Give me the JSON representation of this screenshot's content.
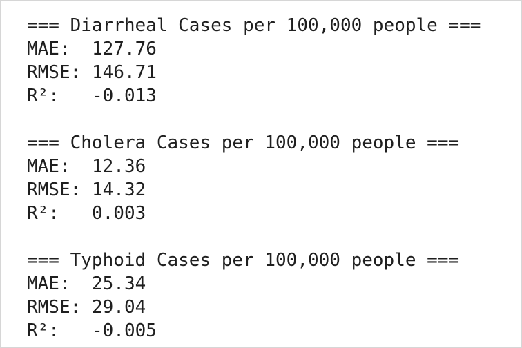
{
  "blocks": [
    {
      "title": "=== Diarrheal Cases per 100,000 people ===",
      "metrics": [
        {
          "label": "MAE:",
          "value": 127.76
        },
        {
          "label": "RMSE:",
          "value": 146.71
        },
        {
          "label": "R²:",
          "value": -0.013
        }
      ]
    },
    {
      "title": "=== Cholera Cases per 100,000 people ===",
      "metrics": [
        {
          "label": "MAE:",
          "value": 12.36
        },
        {
          "label": "RMSE:",
          "value": 14.32
        },
        {
          "label": "R²:",
          "value": 0.003
        }
      ]
    },
    {
      "title": "=== Typhoid Cases per 100,000 people ===",
      "metrics": [
        {
          "label": "MAE:",
          "value": 25.34
        },
        {
          "label": "RMSE:",
          "value": 29.04
        },
        {
          "label": "R²:",
          "value": -0.005
        }
      ]
    }
  ]
}
